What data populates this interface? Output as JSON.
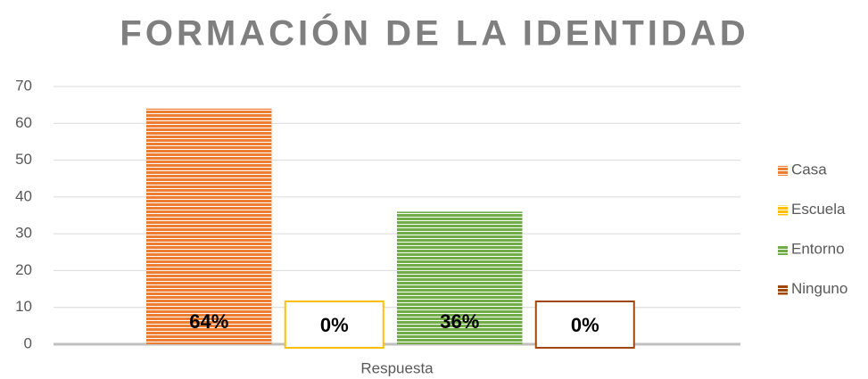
{
  "chart_data": {
    "type": "bar",
    "title": "FORMACIÓN DE LA IDENTIDAD",
    "categories": [
      "Respuesta"
    ],
    "series": [
      {
        "name": "Casa",
        "color": "#ed7d31",
        "values": [
          64
        ],
        "value_labels": [
          "64%"
        ]
      },
      {
        "name": "Escuela",
        "color": "#ffc000",
        "values": [
          0
        ],
        "value_labels": [
          "0%"
        ]
      },
      {
        "name": "Entorno",
        "color": "#70ad47",
        "values": [
          36
        ],
        "value_labels": [
          "36%"
        ]
      },
      {
        "name": "Ninguno",
        "color": "#9e480e",
        "values": [
          0
        ],
        "value_labels": [
          "0%"
        ]
      }
    ],
    "ylim": [
      0,
      70
    ],
    "yticks": [
      0,
      10,
      20,
      30,
      40,
      50,
      60,
      70
    ],
    "grid": true,
    "legend": "right"
  }
}
